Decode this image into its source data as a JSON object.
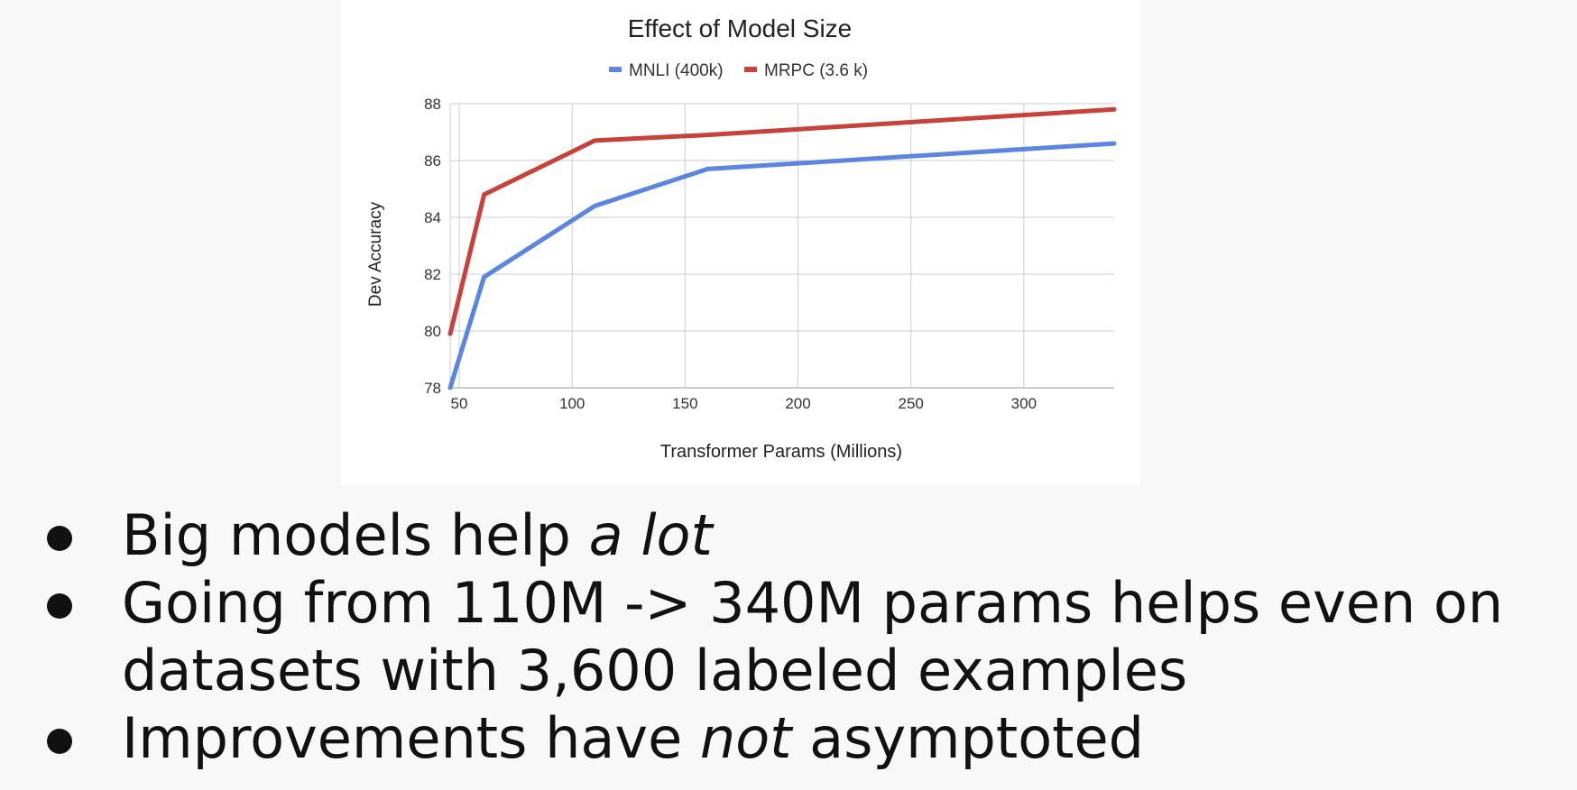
{
  "chart_data": {
    "type": "line",
    "title": "Effect of Model Size",
    "xlabel": "Transformer Params (Millions)",
    "ylabel": "Dev Accuracy",
    "xlim": [
      46,
      340
    ],
    "ylim": [
      78,
      88
    ],
    "x_ticks": [
      50,
      100,
      150,
      200,
      250,
      300
    ],
    "y_ticks": [
      78,
      80,
      82,
      84,
      86,
      88
    ],
    "grid": true,
    "legend_position": "top",
    "series": [
      {
        "name": "MNLI (400k)",
        "color": "#5b85e1",
        "points": [
          [
            46,
            78.0
          ],
          [
            61,
            81.9
          ],
          [
            110,
            84.4
          ],
          [
            160,
            85.7
          ],
          [
            340,
            86.6
          ]
        ]
      },
      {
        "name": "MRPC (3.6 k)",
        "color": "#c6423a",
        "points": [
          [
            46,
            79.9
          ],
          [
            61,
            84.8
          ],
          [
            110,
            86.7
          ],
          [
            160,
            86.9
          ],
          [
            340,
            87.8
          ]
        ]
      }
    ]
  },
  "bullets": [
    {
      "text": "Big models help ",
      "emphasis": "a lot",
      "after": ""
    },
    {
      "text": "Going from 110M -> 340M params helps even on datasets with 3,600 labeled examples",
      "emphasis": "",
      "after": ""
    },
    {
      "text": "Improvements have ",
      "emphasis": "not",
      "after": " asymptoted"
    }
  ]
}
